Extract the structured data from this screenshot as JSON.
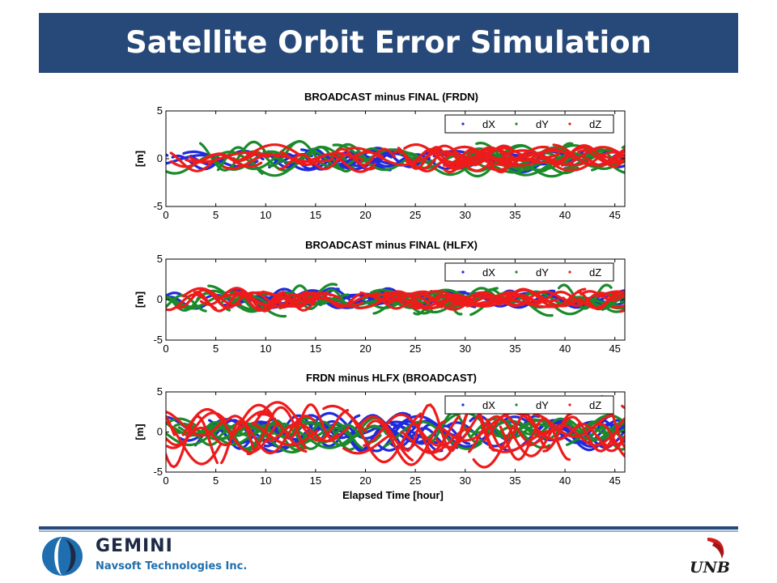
{
  "slide": {
    "title": "Satellite Orbit Error Simulation"
  },
  "footer": {
    "company": "GEMINI",
    "company_sub": "Navsoft Technologies Inc.",
    "partner": "UNB"
  },
  "colors": {
    "title_bar": "#27497a",
    "dX": "#1f2bdc",
    "dY": "#1a8a2a",
    "dZ": "#ee1b1b"
  },
  "chart_data": [
    {
      "type": "scatter",
      "title": "BROADCAST minus FINAL (FRDN)",
      "xlabel": "",
      "ylabel": "[m]",
      "xlim": [
        0,
        46
      ],
      "ylim": [
        -5,
        5
      ],
      "xticks": [
        0,
        5,
        10,
        15,
        20,
        25,
        30,
        35,
        40,
        45
      ],
      "yticks": [
        -5,
        0,
        5
      ],
      "legend": "top-right",
      "series": [
        {
          "name": "dX",
          "amplitude_m": 1.0,
          "n_arcs": 18
        },
        {
          "name": "dY",
          "amplitude_m": 1.5,
          "n_arcs": 20
        },
        {
          "name": "dZ",
          "amplitude_m": 1.2,
          "n_arcs": 22
        }
      ]
    },
    {
      "type": "scatter",
      "title": "BROADCAST minus FINAL (HLFX)",
      "xlabel": "",
      "ylabel": "[m]",
      "xlim": [
        0,
        46
      ],
      "ylim": [
        -5,
        5
      ],
      "xticks": [
        0,
        5,
        10,
        15,
        20,
        25,
        30,
        35,
        40,
        45
      ],
      "yticks": [
        -5,
        0,
        5
      ],
      "legend": "top-right",
      "series": [
        {
          "name": "dX",
          "amplitude_m": 1.0,
          "n_arcs": 18
        },
        {
          "name": "dY",
          "amplitude_m": 1.5,
          "n_arcs": 20
        },
        {
          "name": "dZ",
          "amplitude_m": 1.2,
          "n_arcs": 22
        }
      ]
    },
    {
      "type": "scatter",
      "title": "FRDN minus HLFX (BROADCAST)",
      "xlabel": "Elapsed Time [hour]",
      "ylabel": "[m]",
      "xlim": [
        0,
        46
      ],
      "ylim": [
        -5,
        5
      ],
      "xticks": [
        0,
        5,
        10,
        15,
        20,
        25,
        30,
        35,
        40,
        45
      ],
      "yticks": [
        -5,
        0,
        5
      ],
      "legend": "top-right",
      "series": [
        {
          "name": "dX",
          "amplitude_m": 2.0,
          "n_arcs": 20
        },
        {
          "name": "dY",
          "amplitude_m": 2.0,
          "n_arcs": 20
        },
        {
          "name": "dZ",
          "amplitude_m": 3.5,
          "n_arcs": 24
        }
      ]
    }
  ]
}
